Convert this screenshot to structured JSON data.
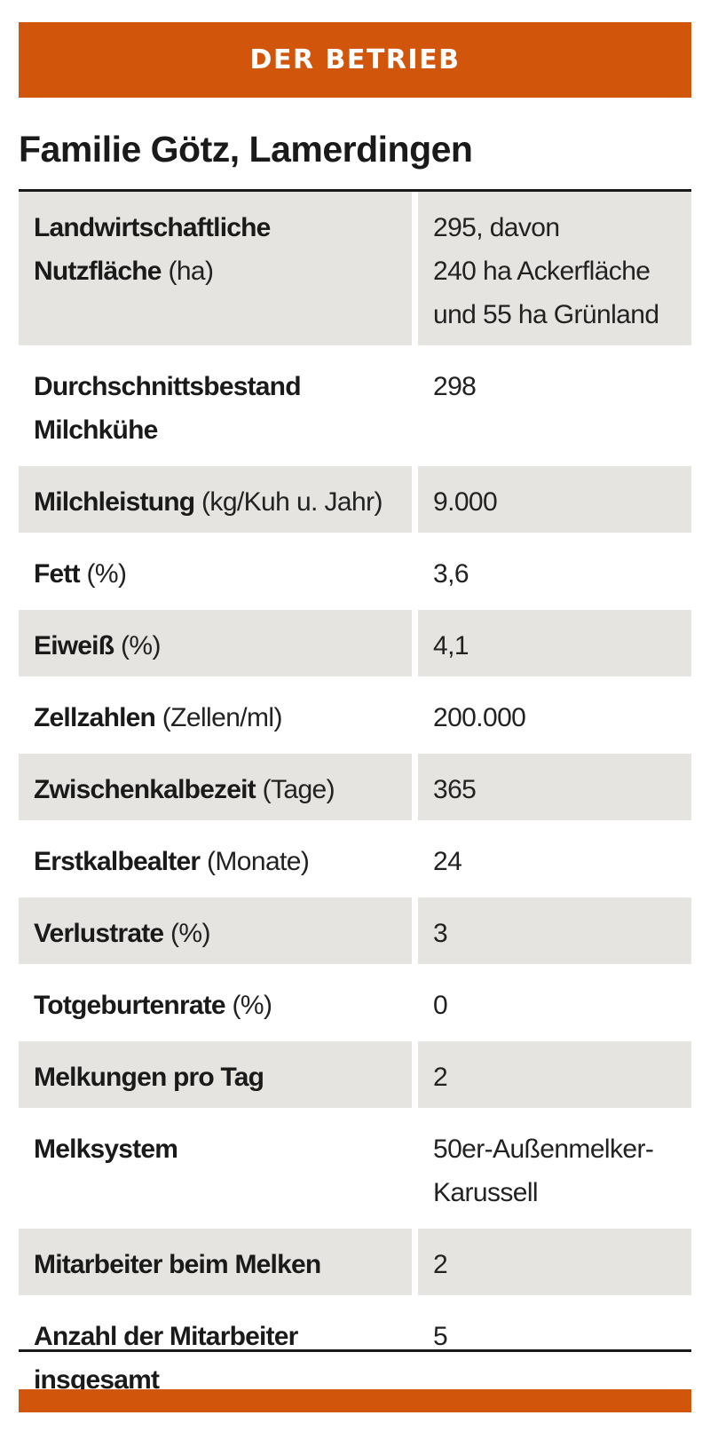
{
  "header": {
    "label": "DER BETRIEB",
    "accent_color": "#d2550c"
  },
  "title": "Familie Götz, Lamerdingen",
  "rows": [
    {
      "label_lines": [
        "Landwirtschaftliche",
        "Nutzfläche"
      ],
      "unit": "(ha)",
      "value_lines": [
        "295, davon",
        "240 ha Ackerfläche",
        "und 55 ha Grünland"
      ],
      "shaded": true
    },
    {
      "label_lines": [
        "Durchschnittsbestand",
        "Milchkühe"
      ],
      "unit": "",
      "value_lines": [
        "298"
      ],
      "shaded": false
    },
    {
      "label_lines": [
        "Milchleistung"
      ],
      "unit": "(kg/Kuh u. Jahr)",
      "value_lines": [
        "9.000"
      ],
      "shaded": true
    },
    {
      "label_lines": [
        "Fett"
      ],
      "unit": "(%)",
      "value_lines": [
        "3,6"
      ],
      "shaded": false
    },
    {
      "label_lines": [
        "Eiweiß"
      ],
      "unit": "(%)",
      "value_lines": [
        "4,1"
      ],
      "shaded": true
    },
    {
      "label_lines": [
        "Zellzahlen"
      ],
      "unit": "(Zellen/ml)",
      "value_lines": [
        "200.000"
      ],
      "shaded": false
    },
    {
      "label_lines": [
        "Zwischenkalbezeit"
      ],
      "unit": "(Tage)",
      "value_lines": [
        "365"
      ],
      "shaded": true
    },
    {
      "label_lines": [
        "Erstkalbealter"
      ],
      "unit": "(Monate)",
      "value_lines": [
        "24"
      ],
      "shaded": false
    },
    {
      "label_lines": [
        "Verlustrate"
      ],
      "unit": "(%)",
      "value_lines": [
        "3"
      ],
      "shaded": true
    },
    {
      "label_lines": [
        "Totgeburtenrate"
      ],
      "unit": "(%)",
      "value_lines": [
        "0"
      ],
      "shaded": false
    },
    {
      "label_lines": [
        "Melkungen pro Tag"
      ],
      "unit": "",
      "value_lines": [
        "2"
      ],
      "shaded": true
    },
    {
      "label_lines": [
        "Melksystem"
      ],
      "unit": "",
      "value_lines": [
        "50er-Außenmelker-",
        "Karussell"
      ],
      "shaded": false
    },
    {
      "label_lines": [
        "Mitarbeiter beim Melken"
      ],
      "unit": "",
      "value_lines": [
        "2"
      ],
      "shaded": true
    },
    {
      "label_lines": [
        "Anzahl der Mitarbeiter",
        "insgesamt"
      ],
      "unit": "",
      "value_lines": [
        "5"
      ],
      "shaded": false
    }
  ]
}
